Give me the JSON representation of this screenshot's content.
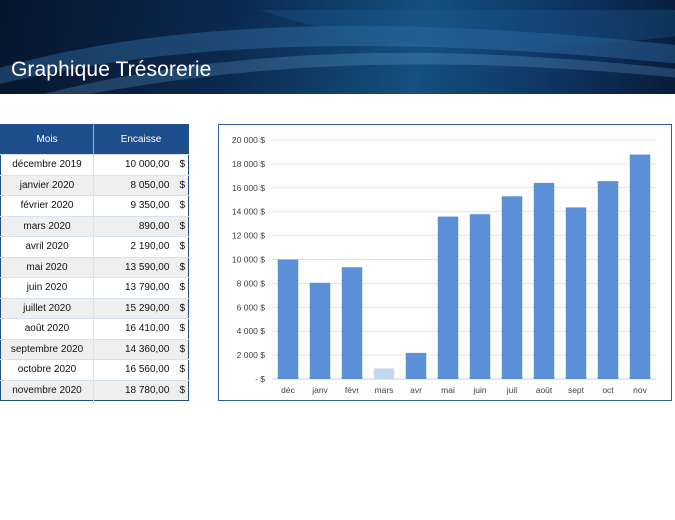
{
  "header": {
    "title": "Graphique Trésorerie"
  },
  "table": {
    "headers": [
      "Mois",
      "Encaisse"
    ],
    "currency": "$",
    "rows": [
      {
        "mois": "décembre 2019",
        "encaisse": "10 000,00"
      },
      {
        "mois": "janvier 2020",
        "encaisse": "8 050,00"
      },
      {
        "mois": "février 2020",
        "encaisse": "9 350,00"
      },
      {
        "mois": "mars 2020",
        "encaisse": "890,00"
      },
      {
        "mois": "avril 2020",
        "encaisse": "2 190,00"
      },
      {
        "mois": "mai 2020",
        "encaisse": "13 590,00"
      },
      {
        "mois": "juin 2020",
        "encaisse": "13 790,00"
      },
      {
        "mois": "juillet 2020",
        "encaisse": "15 290,00"
      },
      {
        "mois": "août 2020",
        "encaisse": "16 410,00"
      },
      {
        "mois": "septembre 2020",
        "encaisse": "14 360,00"
      },
      {
        "mois": "octobre 2020",
        "encaisse": "16 560,00"
      },
      {
        "mois": "novembre 2020",
        "encaisse": "18 780,00"
      }
    ]
  },
  "chart_data": {
    "type": "bar",
    "title": "",
    "xlabel": "",
    "ylabel": "",
    "categories": [
      "déc",
      "janv",
      "févr",
      "mars",
      "avr",
      "mai",
      "juin",
      "juil",
      "août",
      "sept",
      "oct",
      "nov"
    ],
    "values": [
      10000,
      8050,
      9350,
      890,
      2190,
      13590,
      13790,
      15290,
      16410,
      14360,
      16560,
      18780
    ],
    "ylim": [
      0,
      20000
    ],
    "ytick_values": [
      0,
      2000,
      4000,
      6000,
      8000,
      10000,
      12000,
      14000,
      16000,
      18000,
      20000
    ],
    "ytick_labels": [
      "-   $",
      "2 000  $",
      "4 000  $",
      "6 000  $",
      "8 000  $",
      "10 000  $",
      "12 000  $",
      "14 000  $",
      "16 000  $",
      "18 000  $",
      "20 000  $"
    ],
    "grid": true,
    "legend": "none",
    "colors": {
      "bar": "#5b8fd6",
      "bar_highlight": "#c5d8f1",
      "gridline": "#dfe6ee",
      "axis_text": "#404040"
    },
    "highlight_index": 3
  },
  "colors": {
    "header_fill": "#1f4e8c",
    "row_alt": "#efeff0",
    "border": "#2e5d9a"
  }
}
